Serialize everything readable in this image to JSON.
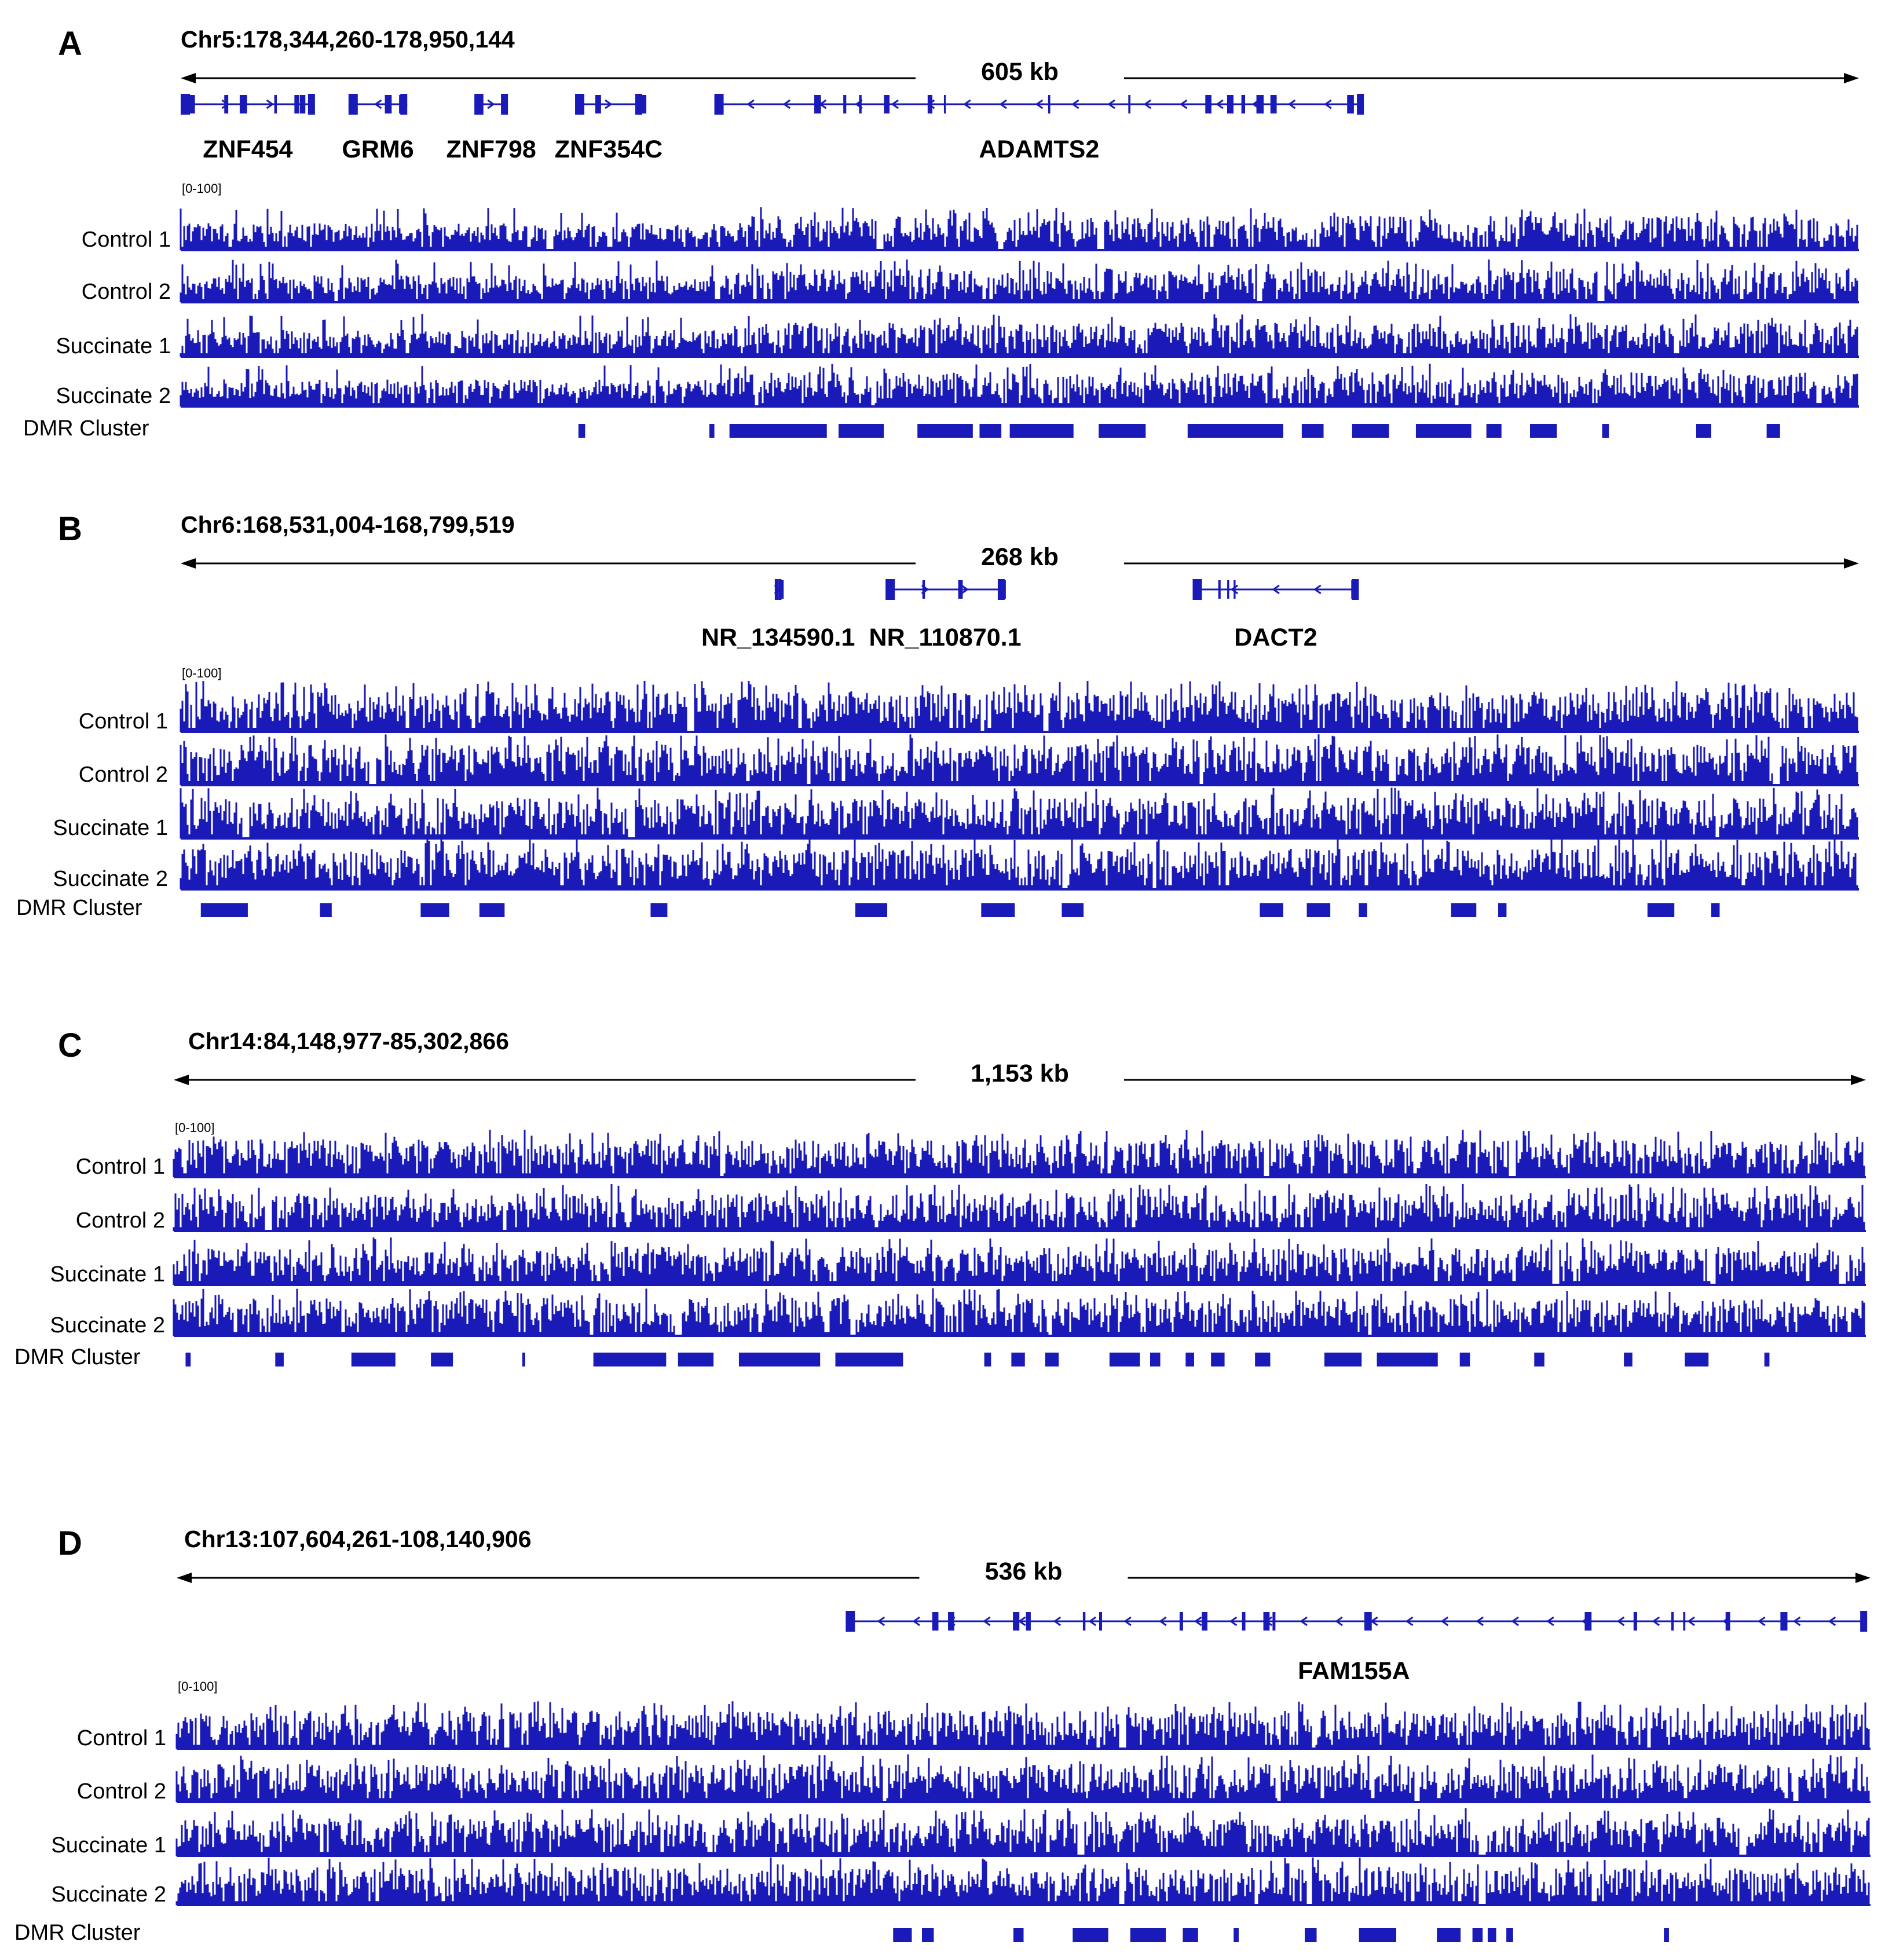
{
  "colors": {
    "track": "#1a1ab8",
    "axis": "#000000"
  },
  "panels": [
    {
      "letter": "A",
      "locus": "Chr5:178,344,260-178,950,144",
      "span_label": "605 kb",
      "range_label": "[0-100]",
      "genes": [
        {
          "label": "ZNF454",
          "start": 0.0,
          "end": 0.08,
          "strand": "+"
        },
        {
          "label": "GRM6",
          "start": 0.1,
          "end": 0.135,
          "strand": "-"
        },
        {
          "label": "ZNF798",
          "start": 0.175,
          "end": 0.195,
          "strand": "+"
        },
        {
          "label": "ZNF354C",
          "start": 0.235,
          "end": 0.275,
          "strand": "+"
        },
        {
          "label": "ADAMTS2",
          "start": 0.318,
          "end": 0.705,
          "strand": "-"
        }
      ],
      "tracks": [
        "Control 1",
        "Control 2",
        "Succinate 1",
        "Succinate 2"
      ],
      "dmr_label": "DMR Cluster",
      "dmr": [
        [
          0.237,
          0.241
        ],
        [
          0.315,
          0.318
        ],
        [
          0.327,
          0.385
        ],
        [
          0.392,
          0.419
        ],
        [
          0.439,
          0.472
        ],
        [
          0.476,
          0.489
        ],
        [
          0.494,
          0.532
        ],
        [
          0.547,
          0.575
        ],
        [
          0.6,
          0.657
        ],
        [
          0.668,
          0.681
        ],
        [
          0.698,
          0.72
        ],
        [
          0.736,
          0.769
        ],
        [
          0.778,
          0.787
        ],
        [
          0.804,
          0.82
        ],
        [
          0.847,
          0.851
        ],
        [
          0.903,
          0.912
        ],
        [
          0.945,
          0.953
        ]
      ]
    },
    {
      "letter": "B",
      "locus": "Chr6:168,531,004-168,799,519",
      "span_label": "268 kb",
      "range_label": "[0-100]",
      "genes": [
        {
          "label": "NR_134590.1",
          "start": 0.354,
          "end": 0.358,
          "strand": "+"
        },
        {
          "label": "NR_110870.1",
          "start": 0.42,
          "end": 0.491,
          "strand": "+"
        },
        {
          "label": "DACT2",
          "start": 0.603,
          "end": 0.702,
          "strand": "-"
        }
      ],
      "tracks": [
        "Control 1",
        "Control 2",
        "Succinate 1",
        "Succinate 2"
      ],
      "dmr_label": "DMR Cluster",
      "dmr": [
        [
          0.012,
          0.04
        ],
        [
          0.083,
          0.09
        ],
        [
          0.143,
          0.16
        ],
        [
          0.178,
          0.193
        ],
        [
          0.28,
          0.29
        ],
        [
          0.402,
          0.421
        ],
        [
          0.477,
          0.497
        ],
        [
          0.525,
          0.538
        ],
        [
          0.643,
          0.657
        ],
        [
          0.671,
          0.685
        ],
        [
          0.702,
          0.707
        ],
        [
          0.757,
          0.772
        ],
        [
          0.785,
          0.79
        ],
        [
          0.874,
          0.89
        ],
        [
          0.912,
          0.917
        ]
      ]
    },
    {
      "letter": "C",
      "locus": "Chr14:84,148,977-85,302,866",
      "span_label": "1,153 kb",
      "range_label": "[0-100]",
      "genes": [],
      "tracks": [
        "Control 1",
        "Control 2",
        "Succinate 1",
        "Succinate 2"
      ],
      "dmr_label": "DMR Cluster",
      "dmr": [
        [
          0.007,
          0.01
        ],
        [
          0.06,
          0.065
        ],
        [
          0.105,
          0.131
        ],
        [
          0.152,
          0.165
        ],
        [
          0.206,
          0.207
        ],
        [
          0.248,
          0.291
        ],
        [
          0.298,
          0.319
        ],
        [
          0.334,
          0.382
        ],
        [
          0.391,
          0.431
        ],
        [
          0.479,
          0.483
        ],
        [
          0.495,
          0.503
        ],
        [
          0.515,
          0.523
        ],
        [
          0.553,
          0.571
        ],
        [
          0.577,
          0.583
        ],
        [
          0.598,
          0.603
        ],
        [
          0.613,
          0.621
        ],
        [
          0.639,
          0.648
        ],
        [
          0.68,
          0.702
        ],
        [
          0.711,
          0.747
        ],
        [
          0.76,
          0.766
        ],
        [
          0.804,
          0.81
        ],
        [
          0.857,
          0.862
        ],
        [
          0.893,
          0.907
        ],
        [
          0.94,
          0.943
        ]
      ]
    },
    {
      "letter": "D",
      "locus": "Chr13:107,604,261-108,140,906",
      "span_label": "536 kb",
      "range_label": "[0-100]",
      "genes": [
        {
          "label": "FAM155A",
          "start": 0.395,
          "end": 0.998,
          "strand": "-",
          "label_at": 0.695
        }
      ],
      "tracks": [
        "Control 1",
        "Control 2",
        "Succinate 1",
        "Succinate 2"
      ],
      "dmr_label": "DMR Cluster",
      "dmr": [
        [
          0.423,
          0.434
        ],
        [
          0.44,
          0.447
        ],
        [
          0.494,
          0.5
        ],
        [
          0.529,
          0.55
        ],
        [
          0.563,
          0.584
        ],
        [
          0.594,
          0.603
        ],
        [
          0.624,
          0.627
        ],
        [
          0.666,
          0.673
        ],
        [
          0.698,
          0.72
        ],
        [
          0.744,
          0.758
        ],
        [
          0.765,
          0.771
        ],
        [
          0.774,
          0.779
        ],
        [
          0.785,
          0.789
        ],
        [
          0.878,
          0.881
        ]
      ]
    }
  ]
}
